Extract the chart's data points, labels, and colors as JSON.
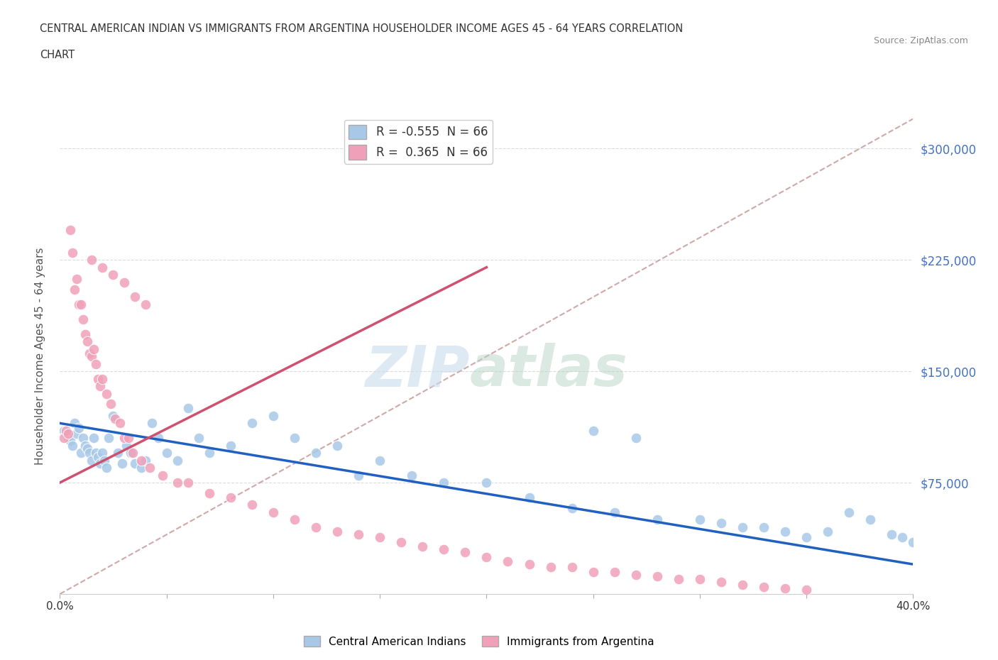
{
  "title_line1": "CENTRAL AMERICAN INDIAN VS IMMIGRANTS FROM ARGENTINA HOUSEHOLDER INCOME AGES 45 - 64 YEARS CORRELATION",
  "title_line2": "CHART",
  "source": "Source: ZipAtlas.com",
  "ylabel": "Householder Income Ages 45 - 64 years",
  "xmin": 0.0,
  "xmax": 0.4,
  "ymin": 0,
  "ymax": 320000,
  "ytick_positions": [
    75000,
    150000,
    225000,
    300000
  ],
  "ytick_labels": [
    "$75,000",
    "$150,000",
    "$225,000",
    "$300,000"
  ],
  "xticks": [
    0.0,
    0.05,
    0.1,
    0.15,
    0.2,
    0.25,
    0.3,
    0.35,
    0.4
  ],
  "xtick_labels": [
    "0.0%",
    "",
    "",
    "",
    "",
    "",
    "",
    "",
    "40.0%"
  ],
  "blue_color": "#A8C8E8",
  "pink_color": "#F0A0B8",
  "blue_line_color": "#2060C0",
  "pink_line_color": "#D05070",
  "dashed_line_color": "#D0A8A8",
  "R_blue": -0.555,
  "R_pink": 0.365,
  "N_blue": 66,
  "N_pink": 66,
  "legend_label_blue": "Central American Indians",
  "legend_label_pink": "Immigrants from Argentina",
  "watermark_zip": "ZIP",
  "watermark_atlas": "atlas",
  "background_color": "#FFFFFF",
  "blue_scatter_x": [
    0.002,
    0.003,
    0.004,
    0.005,
    0.006,
    0.007,
    0.008,
    0.009,
    0.01,
    0.011,
    0.012,
    0.013,
    0.014,
    0.015,
    0.016,
    0.017,
    0.018,
    0.019,
    0.02,
    0.021,
    0.022,
    0.023,
    0.025,
    0.027,
    0.029,
    0.031,
    0.033,
    0.035,
    0.038,
    0.04,
    0.043,
    0.046,
    0.05,
    0.055,
    0.06,
    0.065,
    0.07,
    0.08,
    0.09,
    0.1,
    0.11,
    0.12,
    0.13,
    0.14,
    0.15,
    0.165,
    0.18,
    0.2,
    0.22,
    0.24,
    0.26,
    0.28,
    0.3,
    0.32,
    0.34,
    0.36,
    0.37,
    0.38,
    0.39,
    0.395,
    0.25,
    0.27,
    0.31,
    0.33,
    0.35,
    0.4
  ],
  "blue_scatter_y": [
    110000,
    108000,
    105000,
    103000,
    100000,
    115000,
    108000,
    112000,
    95000,
    105000,
    100000,
    98000,
    95000,
    90000,
    105000,
    95000,
    92000,
    88000,
    95000,
    90000,
    85000,
    105000,
    120000,
    95000,
    88000,
    100000,
    95000,
    88000,
    85000,
    90000,
    115000,
    105000,
    95000,
    90000,
    125000,
    105000,
    95000,
    100000,
    115000,
    120000,
    105000,
    95000,
    100000,
    80000,
    90000,
    80000,
    75000,
    75000,
    65000,
    58000,
    55000,
    50000,
    50000,
    45000,
    42000,
    42000,
    55000,
    50000,
    40000,
    38000,
    110000,
    105000,
    48000,
    45000,
    38000,
    35000
  ],
  "pink_scatter_x": [
    0.002,
    0.003,
    0.004,
    0.005,
    0.006,
    0.007,
    0.008,
    0.009,
    0.01,
    0.011,
    0.012,
    0.013,
    0.014,
    0.015,
    0.016,
    0.017,
    0.018,
    0.019,
    0.02,
    0.022,
    0.024,
    0.026,
    0.028,
    0.03,
    0.032,
    0.034,
    0.038,
    0.042,
    0.048,
    0.055,
    0.06,
    0.07,
    0.08,
    0.09,
    0.1,
    0.11,
    0.12,
    0.13,
    0.14,
    0.15,
    0.16,
    0.17,
    0.18,
    0.19,
    0.2,
    0.21,
    0.22,
    0.23,
    0.24,
    0.25,
    0.26,
    0.27,
    0.28,
    0.29,
    0.3,
    0.31,
    0.32,
    0.33,
    0.34,
    0.35,
    0.015,
    0.02,
    0.025,
    0.03,
    0.035,
    0.04
  ],
  "pink_scatter_y": [
    105000,
    110000,
    108000,
    245000,
    230000,
    205000,
    212000,
    195000,
    195000,
    185000,
    175000,
    170000,
    162000,
    160000,
    165000,
    155000,
    145000,
    140000,
    145000,
    135000,
    128000,
    118000,
    115000,
    105000,
    105000,
    95000,
    90000,
    85000,
    80000,
    75000,
    75000,
    68000,
    65000,
    60000,
    55000,
    50000,
    45000,
    42000,
    40000,
    38000,
    35000,
    32000,
    30000,
    28000,
    25000,
    22000,
    20000,
    18000,
    18000,
    15000,
    15000,
    13000,
    12000,
    10000,
    10000,
    8000,
    6000,
    5000,
    4000,
    3000,
    225000,
    220000,
    215000,
    210000,
    200000,
    195000
  ],
  "blue_trend_x": [
    0.0,
    0.4
  ],
  "blue_trend_y": [
    115000,
    20000
  ],
  "pink_trend_x": [
    0.0,
    0.2
  ],
  "pink_trend_y": [
    75000,
    220000
  ]
}
